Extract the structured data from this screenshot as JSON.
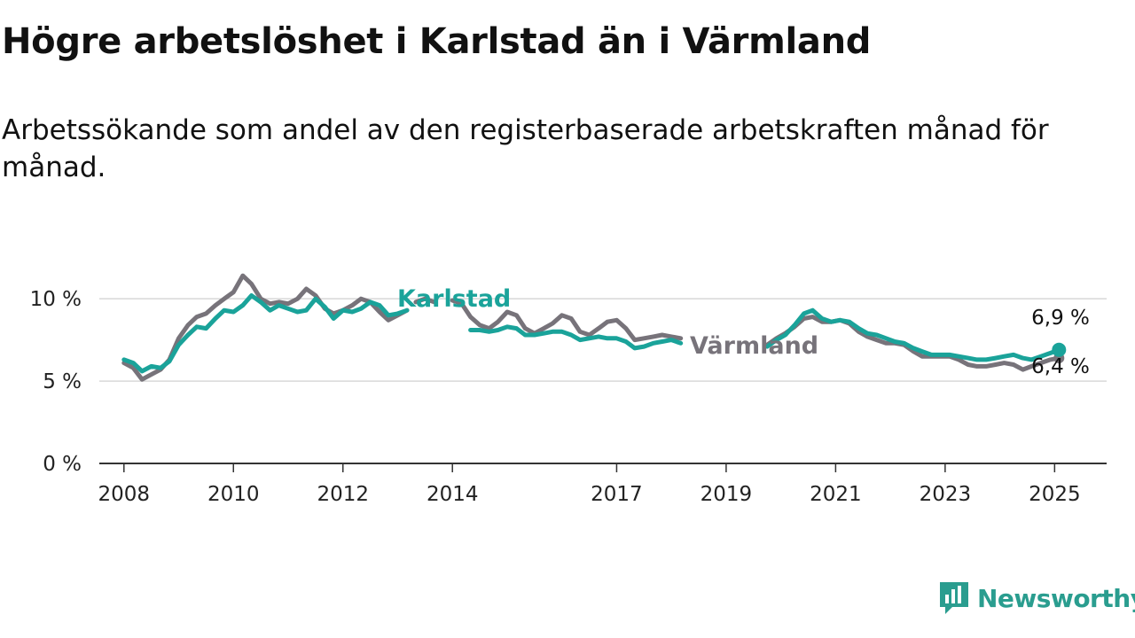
{
  "title": "Högre arbetslöshet i Karlstad än i Värmland",
  "subtitle": "Arbetssökande som andel av den registerbaserade arbetskraften månad för månad.",
  "brand": {
    "name": "Newsworthy",
    "icon": "newsworthy-logo-icon"
  },
  "colors": {
    "karlstad": "#1aa39a",
    "varmland": "#77737a",
    "grid": "#d8d8d8",
    "axis": "#333333"
  },
  "chart_data": {
    "type": "line",
    "y_unit": "%",
    "ylim": [
      0,
      12
    ],
    "y_ticks": [
      {
        "value": 0,
        "label": "0 %"
      },
      {
        "value": 5,
        "label": "5 %"
      },
      {
        "value": 10,
        "label": "10 %"
      }
    ],
    "x_ticks": [
      {
        "value": 2008,
        "label": "2008"
      },
      {
        "value": 2010,
        "label": "2010"
      },
      {
        "value": 2012,
        "label": "2012"
      },
      {
        "value": 2014,
        "label": "2014"
      },
      {
        "value": 2017,
        "label": "2017"
      },
      {
        "value": 2019,
        "label": "2019"
      },
      {
        "value": 2021,
        "label": "2021"
      },
      {
        "value": 2023,
        "label": "2023"
      },
      {
        "value": 2025,
        "label": "2025"
      }
    ],
    "grid": true,
    "series": [
      {
        "name": "Karlstad",
        "end_label": "6,9 %",
        "segments": [
          [
            [
              2008.0,
              6.3
            ],
            [
              2008.17,
              6.1
            ],
            [
              2008.33,
              5.6
            ],
            [
              2008.5,
              5.9
            ],
            [
              2008.67,
              5.8
            ],
            [
              2008.83,
              6.2
            ],
            [
              2009.0,
              7.2
            ],
            [
              2009.17,
              7.8
            ],
            [
              2009.33,
              8.3
            ],
            [
              2009.5,
              8.2
            ],
            [
              2009.67,
              8.8
            ],
            [
              2009.83,
              9.3
            ],
            [
              2010.0,
              9.2
            ],
            [
              2010.17,
              9.6
            ],
            [
              2010.33,
              10.2
            ],
            [
              2010.5,
              9.8
            ],
            [
              2010.67,
              9.3
            ],
            [
              2010.83,
              9.6
            ],
            [
              2011.0,
              9.4
            ],
            [
              2011.17,
              9.2
            ],
            [
              2011.33,
              9.3
            ],
            [
              2011.5,
              10.0
            ],
            [
              2011.67,
              9.5
            ],
            [
              2011.83,
              8.8
            ],
            [
              2012.0,
              9.3
            ],
            [
              2012.17,
              9.2
            ],
            [
              2012.33,
              9.4
            ],
            [
              2012.5,
              9.8
            ],
            [
              2012.67,
              9.6
            ],
            [
              2012.83,
              9.0
            ],
            [
              2013.0,
              9.1
            ],
            [
              2013.17,
              9.3
            ]
          ],
          [
            [
              2014.33,
              8.1
            ],
            [
              2014.5,
              8.1
            ],
            [
              2014.67,
              8.0
            ],
            [
              2014.83,
              8.1
            ],
            [
              2015.0,
              8.3
            ],
            [
              2015.17,
              8.2
            ],
            [
              2015.33,
              7.8
            ],
            [
              2015.5,
              7.8
            ],
            [
              2015.67,
              7.9
            ],
            [
              2015.83,
              8.0
            ],
            [
              2016.0,
              8.0
            ],
            [
              2016.17,
              7.8
            ],
            [
              2016.33,
              7.5
            ],
            [
              2016.5,
              7.6
            ],
            [
              2016.67,
              7.7
            ],
            [
              2016.83,
              7.6
            ],
            [
              2017.0,
              7.6
            ],
            [
              2017.17,
              7.4
            ],
            [
              2017.33,
              7.0
            ],
            [
              2017.5,
              7.1
            ],
            [
              2017.67,
              7.3
            ],
            [
              2017.83,
              7.4
            ],
            [
              2018.0,
              7.5
            ],
            [
              2018.17,
              7.3
            ]
          ],
          [
            [
              2019.75,
              7.1
            ],
            [
              2019.92,
              7.5
            ],
            [
              2020.08,
              7.8
            ],
            [
              2020.25,
              8.4
            ],
            [
              2020.42,
              9.1
            ],
            [
              2020.58,
              9.3
            ],
            [
              2020.75,
              8.8
            ],
            [
              2020.92,
              8.6
            ],
            [
              2021.08,
              8.7
            ],
            [
              2021.25,
              8.6
            ],
            [
              2021.42,
              8.2
            ],
            [
              2021.58,
              7.9
            ],
            [
              2021.75,
              7.8
            ],
            [
              2021.92,
              7.6
            ],
            [
              2022.08,
              7.4
            ],
            [
              2022.25,
              7.3
            ],
            [
              2022.42,
              7.0
            ],
            [
              2022.58,
              6.8
            ],
            [
              2022.75,
              6.6
            ],
            [
              2022.92,
              6.6
            ],
            [
              2023.08,
              6.6
            ],
            [
              2023.25,
              6.5
            ],
            [
              2023.42,
              6.4
            ],
            [
              2023.58,
              6.3
            ],
            [
              2023.75,
              6.3
            ],
            [
              2023.92,
              6.4
            ],
            [
              2024.08,
              6.5
            ],
            [
              2024.25,
              6.6
            ],
            [
              2024.42,
              6.4
            ],
            [
              2024.58,
              6.3
            ],
            [
              2024.75,
              6.5
            ],
            [
              2024.92,
              6.7
            ],
            [
              2025.08,
              6.9
            ]
          ]
        ]
      },
      {
        "name": "Värmland",
        "end_label": "6,4 %",
        "segments": [
          [
            [
              2008.0,
              6.1
            ],
            [
              2008.17,
              5.8
            ],
            [
              2008.33,
              5.1
            ],
            [
              2008.5,
              5.4
            ],
            [
              2008.67,
              5.7
            ],
            [
              2008.83,
              6.3
            ],
            [
              2009.0,
              7.6
            ],
            [
              2009.17,
              8.4
            ],
            [
              2009.33,
              8.9
            ],
            [
              2009.5,
              9.1
            ],
            [
              2009.67,
              9.6
            ],
            [
              2009.83,
              10.0
            ],
            [
              2010.0,
              10.4
            ],
            [
              2010.17,
              11.4
            ],
            [
              2010.33,
              10.9
            ],
            [
              2010.5,
              10.0
            ],
            [
              2010.67,
              9.7
            ],
            [
              2010.83,
              9.8
            ],
            [
              2011.0,
              9.7
            ],
            [
              2011.17,
              10.0
            ],
            [
              2011.33,
              10.6
            ],
            [
              2011.5,
              10.2
            ],
            [
              2011.67,
              9.4
            ],
            [
              2011.83,
              9.1
            ],
            [
              2012.0,
              9.3
            ],
            [
              2012.17,
              9.6
            ],
            [
              2012.33,
              10.0
            ],
            [
              2012.5,
              9.8
            ],
            [
              2012.67,
              9.2
            ],
            [
              2012.83,
              8.7
            ],
            [
              2013.0,
              9.0
            ],
            [
              2013.17,
              9.3
            ]
          ],
          [
            [
              2013.33,
              9.8
            ],
            [
              2013.5,
              10.0
            ],
            [
              2013.67,
              9.8
            ]
          ],
          [
            [
              2014.0,
              9.9
            ],
            [
              2014.17,
              9.7
            ],
            [
              2014.33,
              8.9
            ],
            [
              2014.5,
              8.4
            ],
            [
              2014.67,
              8.2
            ],
            [
              2014.83,
              8.6
            ],
            [
              2015.0,
              9.2
            ],
            [
              2015.17,
              9.0
            ],
            [
              2015.33,
              8.2
            ],
            [
              2015.5,
              7.9
            ],
            [
              2015.67,
              8.2
            ],
            [
              2015.83,
              8.5
            ],
            [
              2016.0,
              9.0
            ],
            [
              2016.17,
              8.8
            ],
            [
              2016.33,
              8.0
            ],
            [
              2016.5,
              7.8
            ],
            [
              2016.67,
              8.2
            ],
            [
              2016.83,
              8.6
            ],
            [
              2017.0,
              8.7
            ],
            [
              2017.17,
              8.2
            ],
            [
              2017.33,
              7.5
            ],
            [
              2017.5,
              7.6
            ],
            [
              2017.67,
              7.7
            ],
            [
              2017.83,
              7.8
            ],
            [
              2018.0,
              7.7
            ],
            [
              2018.17,
              7.6
            ]
          ],
          [
            [
              2019.75,
              7.2
            ],
            [
              2019.92,
              7.6
            ],
            [
              2020.08,
              7.9
            ],
            [
              2020.25,
              8.3
            ],
            [
              2020.42,
              8.8
            ],
            [
              2020.58,
              8.9
            ],
            [
              2020.75,
              8.6
            ],
            [
              2020.92,
              8.6
            ],
            [
              2021.08,
              8.7
            ],
            [
              2021.25,
              8.5
            ],
            [
              2021.42,
              8.0
            ],
            [
              2021.58,
              7.7
            ],
            [
              2021.75,
              7.5
            ],
            [
              2021.92,
              7.3
            ],
            [
              2022.08,
              7.3
            ],
            [
              2022.25,
              7.2
            ],
            [
              2022.42,
              6.8
            ],
            [
              2022.58,
              6.5
            ],
            [
              2022.75,
              6.5
            ],
            [
              2022.92,
              6.5
            ],
            [
              2023.08,
              6.5
            ],
            [
              2023.25,
              6.3
            ],
            [
              2023.42,
              6.0
            ],
            [
              2023.58,
              5.9
            ],
            [
              2023.75,
              5.9
            ],
            [
              2023.92,
              6.0
            ],
            [
              2024.08,
              6.1
            ],
            [
              2024.25,
              6.0
            ],
            [
              2024.42,
              5.7
            ],
            [
              2024.58,
              5.9
            ],
            [
              2024.75,
              6.1
            ],
            [
              2024.92,
              6.3
            ],
            [
              2025.08,
              6.4
            ]
          ]
        ]
      }
    ]
  }
}
